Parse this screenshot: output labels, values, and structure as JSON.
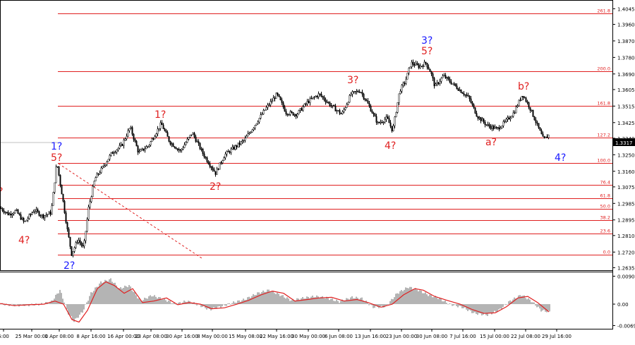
{
  "chart_data": [
    {
      "type": "candlestick",
      "instrument_price": "1.3317",
      "y_ticks": [
        "1.4045",
        "1.3960",
        "1.3870",
        "1.3780",
        "1.3690",
        "1.3605",
        "1.3515",
        "1.3425",
        "1.3340",
        "1.3250",
        "1.3160",
        "1.3075",
        "1.2985",
        "1.2895",
        "1.2810",
        "1.2720",
        "1.2635"
      ],
      "x_ticks": [
        "6:00",
        "25 Mar 00:00",
        "1 Apr 08:00",
        "8 Apr 16:00",
        "16 Apr 00:00",
        "23 Apr 08:00",
        "30 Apr 16:00",
        "8 May 00:00",
        "15 May 08:00",
        "22 May 16:00",
        "30 May 00:00",
        "6 Jun 08:00",
        "13 Jun 16:00",
        "23 Jun 00:00",
        "30 Jun 08:00",
        "7 Jul 16:00",
        "15 Jul 00:00",
        "22 Jul 08:00",
        "29 Jul 16:00"
      ],
      "fib_levels": [
        {
          "label": "261.8",
          "price": 1.402
        },
        {
          "label": "200.0",
          "price": 1.3704
        },
        {
          "label": "161.8",
          "price": 1.3515
        },
        {
          "label": "127.2",
          "price": 1.3342
        },
        {
          "label": "100.0",
          "price": 1.3205
        },
        {
          "label": "76.4",
          "price": 1.3087
        },
        {
          "label": "61.8",
          "price": 1.3013
        },
        {
          "label": "50.0",
          "price": 1.2955
        },
        {
          "label": "38.2",
          "price": 1.2895
        },
        {
          "label": "23.6",
          "price": 1.2822
        },
        {
          "label": "0.0",
          "price": 1.2705
        }
      ],
      "ylim": [
        1.2625,
        1.4085
      ],
      "price_path": [
        [
          0,
          1.296
        ],
        [
          12,
          1.2925
        ],
        [
          22,
          1.2945
        ],
        [
          34,
          1.288
        ],
        [
          48,
          1.295
        ],
        [
          60,
          1.2915
        ],
        [
          72,
          1.2935
        ],
        [
          80,
          1.321
        ],
        [
          88,
          1.302
        ],
        [
          95,
          1.284
        ],
        [
          101,
          1.271
        ],
        [
          110,
          1.279
        ],
        [
          118,
          1.274
        ],
        [
          125,
          1.296
        ],
        [
          134,
          1.312
        ],
        [
          145,
          1.318
        ],
        [
          158,
          1.326
        ],
        [
          172,
          1.33
        ],
        [
          184,
          1.34
        ],
        [
          196,
          1.326
        ],
        [
          210,
          1.33
        ],
        [
          228,
          1.342
        ],
        [
          240,
          1.332
        ],
        [
          255,
          1.327
        ],
        [
          272,
          1.337
        ],
        [
          288,
          1.325
        ],
        [
          305,
          1.315
        ],
        [
          318,
          1.325
        ],
        [
          332,
          1.329
        ],
        [
          346,
          1.333
        ],
        [
          362,
          1.342
        ],
        [
          376,
          1.35
        ],
        [
          392,
          1.358
        ],
        [
          405,
          1.348
        ],
        [
          420,
          1.347
        ],
        [
          436,
          1.354
        ],
        [
          452,
          1.358
        ],
        [
          468,
          1.352
        ],
        [
          484,
          1.347
        ],
        [
          497,
          1.358
        ],
        [
          510,
          1.36
        ],
        [
          522,
          1.352
        ],
        [
          535,
          1.342
        ],
        [
          548,
          1.345
        ],
        [
          556,
          1.338
        ],
        [
          566,
          1.36
        ],
        [
          574,
          1.365
        ],
        [
          582,
          1.375
        ],
        [
          594,
          1.373
        ],
        [
          603,
          1.375
        ],
        [
          610,
          1.37
        ],
        [
          616,
          1.362
        ],
        [
          628,
          1.368
        ],
        [
          640,
          1.364
        ],
        [
          652,
          1.36
        ],
        [
          664,
          1.356
        ],
        [
          676,
          1.346
        ],
        [
          690,
          1.341
        ],
        [
          704,
          1.339
        ],
        [
          716,
          1.343
        ],
        [
          728,
          1.348
        ],
        [
          740,
          1.358
        ],
        [
          750,
          1.351
        ],
        [
          760,
          1.342
        ],
        [
          770,
          1.333
        ],
        [
          778,
          1.336
        ]
      ],
      "oscillator": {
        "y_ticks": [
          "0.00901",
          "0.00",
          "-0.00692"
        ],
        "ylim": [
          -0.0075,
          0.0098
        ],
        "histogram": [
          [
            0,
            0.0
          ],
          [
            20,
            -0.0004
          ],
          [
            40,
            -0.0003
          ],
          [
            58,
            0.0
          ],
          [
            72,
            0.0008
          ],
          [
            84,
            0.0045
          ],
          [
            96,
            -0.003
          ],
          [
            104,
            -0.0055
          ],
          [
            116,
            -0.0025
          ],
          [
            128,
            0.0035
          ],
          [
            142,
            0.007
          ],
          [
            156,
            0.008
          ],
          [
            168,
            0.005
          ],
          [
            182,
            0.006
          ],
          [
            198,
            0.001
          ],
          [
            214,
            0.0028
          ],
          [
            232,
            0.0015
          ],
          [
            248,
            0.0
          ],
          [
            264,
            0.001
          ],
          [
            280,
            -0.0002
          ],
          [
            296,
            -0.0018
          ],
          [
            312,
            -0.0008
          ],
          [
            330,
            0.0005
          ],
          [
            346,
            0.0015
          ],
          [
            364,
            0.0035
          ],
          [
            380,
            0.0045
          ],
          [
            396,
            0.003
          ],
          [
            412,
            0.0012
          ],
          [
            430,
            0.002
          ],
          [
            446,
            0.0025
          ],
          [
            462,
            0.002
          ],
          [
            480,
            0.0008
          ],
          [
            498,
            0.0022
          ],
          [
            512,
            0.0018
          ],
          [
            528,
            -0.001
          ],
          [
            546,
            -0.0008
          ],
          [
            562,
            0.0035
          ],
          [
            578,
            0.0055
          ],
          [
            592,
            0.0045
          ],
          [
            606,
            0.003
          ],
          [
            620,
            0.002
          ],
          [
            636,
            0.0
          ],
          [
            654,
            -0.001
          ],
          [
            672,
            -0.003
          ],
          [
            690,
            -0.0035
          ],
          [
            706,
            -0.002
          ],
          [
            722,
            0.001
          ],
          [
            738,
            0.003
          ],
          [
            752,
            0.001
          ],
          [
            766,
            -0.002
          ],
          [
            778,
            -0.0025
          ]
        ],
        "signal": [
          [
            0,
            0.0002
          ],
          [
            20,
            -0.0005
          ],
          [
            42,
            -0.0002
          ],
          [
            62,
            0.0
          ],
          [
            78,
            0.001
          ],
          [
            90,
            0.0
          ],
          [
            102,
            -0.005
          ],
          [
            112,
            -0.0058
          ],
          [
            124,
            -0.002
          ],
          [
            138,
            0.005
          ],
          [
            150,
            0.0072
          ],
          [
            162,
            0.006
          ],
          [
            176,
            0.0035
          ],
          [
            188,
            0.005
          ],
          [
            202,
            0.0005
          ],
          [
            218,
            0.001
          ],
          [
            236,
            0.002
          ],
          [
            252,
            -0.0002
          ],
          [
            268,
            0.0005
          ],
          [
            284,
            0.0
          ],
          [
            300,
            -0.0015
          ],
          [
            318,
            -0.0012
          ],
          [
            336,
            0.0
          ],
          [
            352,
            0.0012
          ],
          [
            370,
            0.003
          ],
          [
            386,
            0.0042
          ],
          [
            402,
            0.0035
          ],
          [
            418,
            0.001
          ],
          [
            436,
            0.0015
          ],
          [
            452,
            0.002
          ],
          [
            470,
            0.0022
          ],
          [
            488,
            0.001
          ],
          [
            506,
            0.0015
          ],
          [
            522,
            0.0005
          ],
          [
            540,
            -0.001
          ],
          [
            556,
            0.0
          ],
          [
            572,
            0.003
          ],
          [
            588,
            0.005
          ],
          [
            600,
            0.0045
          ],
          [
            616,
            0.0025
          ],
          [
            634,
            0.0012
          ],
          [
            652,
            0.0
          ],
          [
            670,
            -0.0018
          ],
          [
            686,
            -0.003
          ],
          [
            702,
            -0.0028
          ],
          [
            718,
            -0.0008
          ],
          [
            734,
            0.002
          ],
          [
            748,
            0.0025
          ],
          [
            762,
            0.0005
          ],
          [
            778,
            -0.0025
          ]
        ]
      },
      "wave_labels": [
        {
          "id": "label-1q-a",
          "text": "1?",
          "color": "#1a1aff"
        },
        {
          "id": "label-5q-a",
          "text": "5?",
          "color": "#e02020"
        },
        {
          "id": "label-4q-left",
          "text": "4?",
          "color": "#e02020"
        },
        {
          "id": "label-2q-blue",
          "text": "2?",
          "color": "#1a1aff"
        },
        {
          "id": "label-1q-red",
          "text": "1?",
          "color": "#e02020"
        },
        {
          "id": "label-2q-red",
          "text": "2?",
          "color": "#e02020"
        },
        {
          "id": "label-3q-red",
          "text": "3?",
          "color": "#e02020"
        },
        {
          "id": "label-4q-mid",
          "text": "4?",
          "color": "#e02020"
        },
        {
          "id": "label-3q-blue",
          "text": "3?",
          "color": "#1a1aff"
        },
        {
          "id": "label-5q-red",
          "text": "5?",
          "color": "#e02020"
        },
        {
          "id": "label-aq",
          "text": "a?",
          "color": "#e02020"
        },
        {
          "id": "label-bq",
          "text": "b?",
          "color": "#e02020"
        },
        {
          "id": "label-4q-blue",
          "text": "4?",
          "color": "#1a1aff"
        },
        {
          "id": "label-edge",
          "text": "?",
          "color": "#e02020"
        }
      ],
      "colors": {
        "fib": "#e02020",
        "candle": "#000000",
        "histogram": "#b4b4b4",
        "signal": "#e02020",
        "price_box": "#000000"
      }
    }
  ]
}
